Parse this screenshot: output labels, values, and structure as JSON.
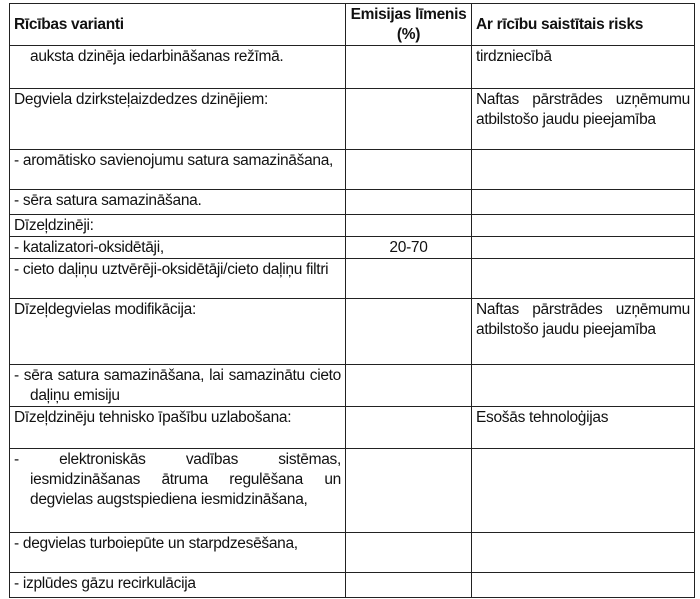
{
  "header": {
    "col1": "Rīcības varianti",
    "col2": "Emisijas līmenis (%)",
    "col3": "Ar rīcību saistītais risks"
  },
  "rows": [
    {
      "option": "auksta dzinēja iedarbināšanas režīmā.",
      "emission": "",
      "risk": "tirdzniecībā"
    },
    {
      "option": "Degviela dzirksteļaizdedzes dzinējiem:",
      "emission": "",
      "risk": "Naftas pārstrādes uzņēmumu atbilstošo jaudu pieejamība"
    },
    {
      "option": "- aromātisko savienojumu satura samazināšana,",
      "emission": "",
      "risk": ""
    },
    {
      "option": "- sēra satura samazināšana.",
      "emission": "",
      "risk": ""
    },
    {
      "option": "Dīzeļdzinēji:",
      "emission": "",
      "risk": ""
    },
    {
      "option": "- katalizatori-oksidētāji,",
      "emission": "20-70",
      "risk": ""
    },
    {
      "option": "- cieto daļiņu uztvērēji-oksidētāji/cieto daļiņu filtri",
      "emission": "",
      "risk": ""
    },
    {
      "option": "Dīzeļdegvielas modifikācija:",
      "emission": "",
      "risk": "Naftas pārstrādes uzņēmumu atbilstošo jaudu pieejamība"
    },
    {
      "option": "- sēra satura samazināšana, lai samazinātu cieto daļiņu emisiju",
      "emission": "",
      "risk": ""
    },
    {
      "option": "Dīzeļdzinēju tehnisko īpašību uzlabošana:",
      "emission": "",
      "risk": "Esošās tehnoloģijas"
    },
    {
      "option": "- elektroniskās vadības sistēmas, iesmidzināšanas ātruma regulēšana un degvielas augstspiediena iesmidzināšana,",
      "emission": "",
      "risk": ""
    },
    {
      "option": "- degvielas turboiepūte un starpdzesēšana,",
      "emission": "",
      "risk": ""
    },
    {
      "option": "- izplūdes gāzu recirkulācija",
      "emission": "",
      "risk": ""
    }
  ]
}
